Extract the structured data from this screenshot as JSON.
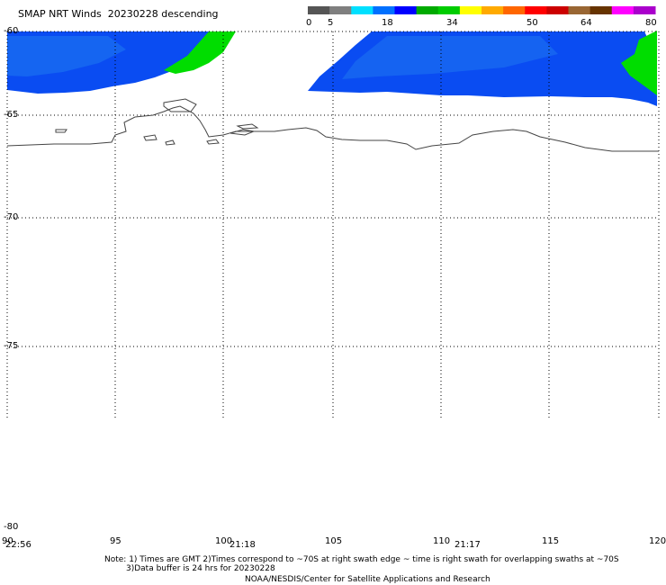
{
  "title": "SMAP NRT Winds  20230228 descending",
  "colorbar": {
    "labels": [
      "0",
      "5",
      "18",
      "34",
      "50",
      "64",
      "80"
    ],
    "colors": [
      "#555555",
      "#7f7f7f",
      "#00e0ff",
      "#0070ff",
      "#0000ff",
      "#00aa00",
      "#00cc00",
      "#ffff00",
      "#ffaa00",
      "#ff6600",
      "#ff0000",
      "#cc0000",
      "#996633",
      "#663300",
      "#ff00ff",
      "#aa00cc"
    ]
  },
  "lat_labels": [
    "-60",
    "-65",
    "-70",
    "-75",
    "-80"
  ],
  "lon_labels": [
    "90",
    "95",
    "100",
    "105",
    "110",
    "115",
    "120"
  ],
  "swath_times": [
    "22:56",
    "21:18",
    "21:17"
  ],
  "notes": {
    "line1": "Note: 1) Times are GMT 2)Times correspond to ~70S at right swath edge ~ time is right swath for overlapping swaths at ~70S",
    "line2": "3)Data buffer is 24 hrs for 20230228",
    "line3": "NOAA/NESDIS/Center for Satellite Applications and Research"
  },
  "wind_colors": {
    "blue": "#0055ff",
    "blue_light": "#1a7bff",
    "green": "#00dd00"
  }
}
